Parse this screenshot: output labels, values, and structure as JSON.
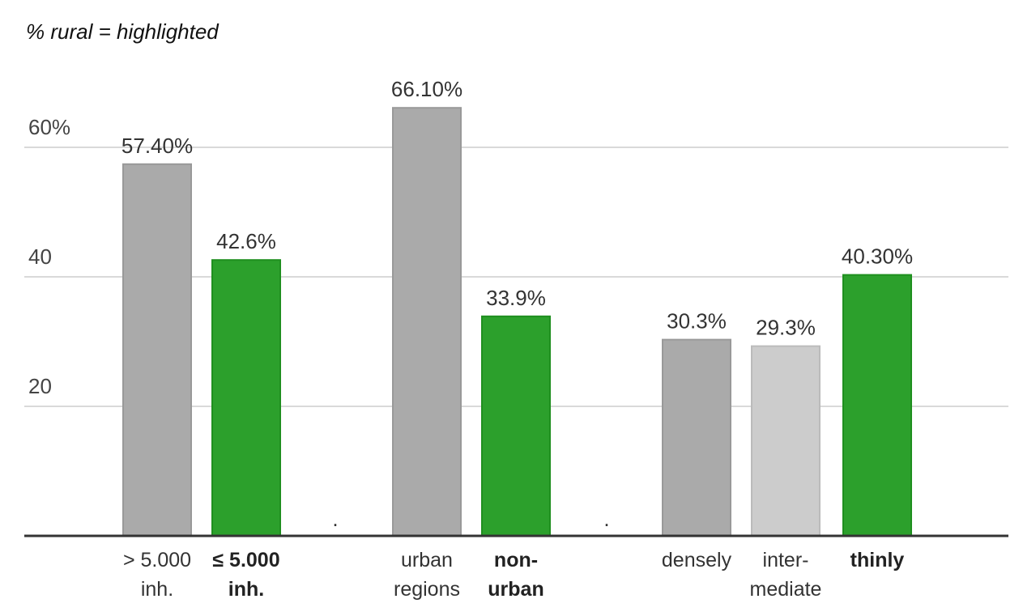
{
  "chart_data": {
    "type": "bar",
    "subtitle": "% rural = highlighted",
    "ylim": [
      0,
      70
    ],
    "yticks": [
      {
        "value": 20,
        "label": "20"
      },
      {
        "value": 40,
        "label": "40"
      },
      {
        "value": 60,
        "label": "60%"
      }
    ],
    "grid": true,
    "groups": [
      {
        "bars": [
          {
            "label": [
              "> 5.000",
              "inh."
            ],
            "value": 57.4,
            "value_label": "57.40%",
            "color": "#aaaaaa",
            "border": "#999999",
            "highlight": false
          },
          {
            "label": [
              "≤ 5.000",
              "inh."
            ],
            "value": 42.6,
            "value_label": "42.6%",
            "color": "#2ca02c",
            "border": "#1f8f1f",
            "highlight": true
          }
        ]
      },
      {
        "bars": [
          {
            "label": [
              "urban",
              "regions"
            ],
            "value": 66.1,
            "value_label": "66.10%",
            "color": "#aaaaaa",
            "border": "#999999",
            "highlight": false
          },
          {
            "label": [
              "non-",
              "urban"
            ],
            "value": 33.9,
            "value_label": "33.9%",
            "color": "#2ca02c",
            "border": "#1f8f1f",
            "highlight": true
          }
        ]
      },
      {
        "bars": [
          {
            "label": [
              "densely"
            ],
            "value": 30.3,
            "value_label": "30.3%",
            "color": "#aaaaaa",
            "border": "#999999",
            "highlight": false
          },
          {
            "label": [
              "inter-",
              "mediate"
            ],
            "value": 29.3,
            "value_label": "29.3%",
            "color": "#cccccc",
            "border": "#bbbbbb",
            "highlight": false
          },
          {
            "label": [
              "thinly"
            ],
            "value": 40.3,
            "value_label": "40.30%",
            "color": "#2ca02c",
            "border": "#1f8f1f",
            "highlight": true
          }
        ]
      }
    ],
    "separator": "."
  }
}
